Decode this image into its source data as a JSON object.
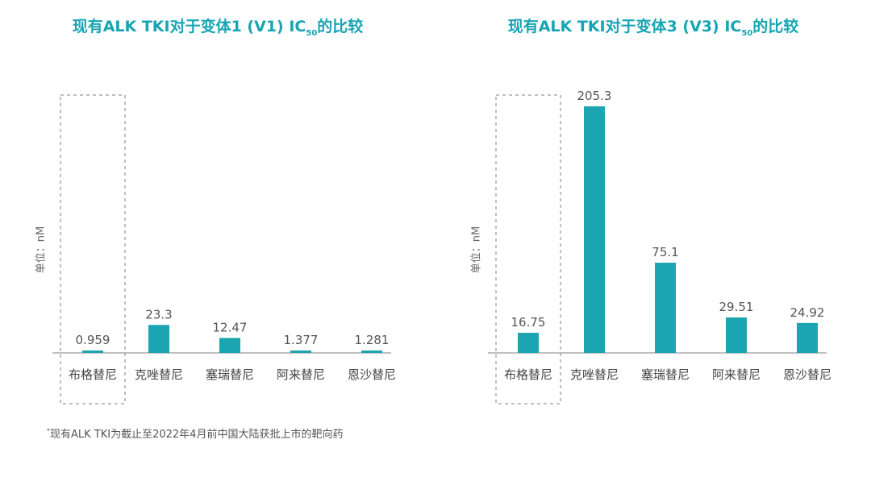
{
  "title_prefix_left": "现有ALK TKI对于变体1 (V1) IC",
  "title_prefix_right": "现有ALK TKI对于变体3 (V3) IC",
  "title_subscript": "50",
  "title_suffix": "的比较",
  "ylabel": "单位：nM",
  "footnote_mark": "*",
  "footnote": "现有ALK TKI为截止至2022年4月前中国大陆获批上市的靶向药",
  "colors": {
    "bar": "#1aa5b0",
    "title": "#17a5b3",
    "highlight_box": "#aaaaaa"
  },
  "chart_data": [
    {
      "type": "bar",
      "title": "现有ALK TKI对于变体1 (V1) IC50的比较",
      "ylabel": "单位：nM",
      "categories": [
        "布格替尼",
        "克唑替尼",
        "塞瑞替尼",
        "阿来替尼",
        "恩沙替尼"
      ],
      "values": [
        0.959,
        23.3,
        12.47,
        1.377,
        1.281
      ],
      "value_labels": [
        "0.959",
        "23.3",
        "12.47",
        "1.377",
        "1.281"
      ],
      "highlight_index": 0,
      "ylim": [
        0,
        220
      ]
    },
    {
      "type": "bar",
      "title": "现有ALK TKI对于变体3 (V3) IC50的比较",
      "ylabel": "单位：nM",
      "categories": [
        "布格替尼",
        "克唑替尼",
        "塞瑞替尼",
        "阿来替尼",
        "恩沙替尼"
      ],
      "values": [
        16.75,
        205.3,
        75.1,
        29.51,
        24.92
      ],
      "value_labels": [
        "16.75",
        "205.3",
        "75.1",
        "29.51",
        "24.92"
      ],
      "highlight_index": 0,
      "ylim": [
        0,
        220
      ]
    }
  ]
}
